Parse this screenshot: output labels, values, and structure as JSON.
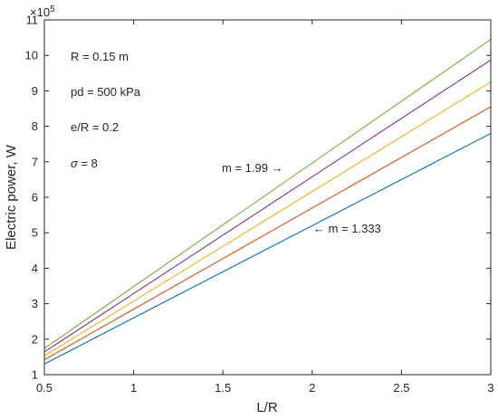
{
  "chart_data": {
    "type": "line",
    "xlabel": "L/R",
    "ylabel": "Electric power, W",
    "xlim": [
      0.5,
      3
    ],
    "ylim": [
      1,
      11
    ],
    "xticks": [
      0.5,
      1,
      1.5,
      2,
      2.5,
      3
    ],
    "xtick_labels": [
      "0.5",
      "1",
      "1.5",
      "2",
      "2.5",
      "3"
    ],
    "yticks": [
      1,
      2,
      3,
      4,
      5,
      6,
      7,
      8,
      9,
      10,
      11
    ],
    "ytick_labels": [
      "1",
      "2",
      "3",
      "4",
      "5",
      "6",
      "7",
      "8",
      "9",
      "10",
      "11"
    ],
    "y_multiplier": {
      "base": "×10",
      "exponent": "5"
    },
    "grid": false,
    "series": [
      {
        "color": "#0072BD",
        "x": [
          0.5,
          3
        ],
        "y": [
          1.3,
          7.8
        ]
      },
      {
        "color": "#D95319",
        "x": [
          0.5,
          3
        ],
        "y": [
          1.42,
          8.55
        ]
      },
      {
        "color": "#EDB120",
        "x": [
          0.5,
          3
        ],
        "y": [
          1.53,
          9.25
        ]
      },
      {
        "color": "#7E2F8E",
        "x": [
          0.5,
          3
        ],
        "y": [
          1.64,
          9.87
        ]
      },
      {
        "color": "#77AC30",
        "x": [
          0.5,
          3
        ],
        "y": [
          1.74,
          10.45
        ]
      }
    ],
    "annotations": {
      "params": [
        "R = 0.15 m",
        "pd = 500 kPa",
        "e/R = 0.2"
      ],
      "sigma": {
        "symbol": "σ",
        "text": " = 8"
      },
      "m_high": "m = 1.99 →",
      "m_low": "← m = 1.333"
    }
  }
}
